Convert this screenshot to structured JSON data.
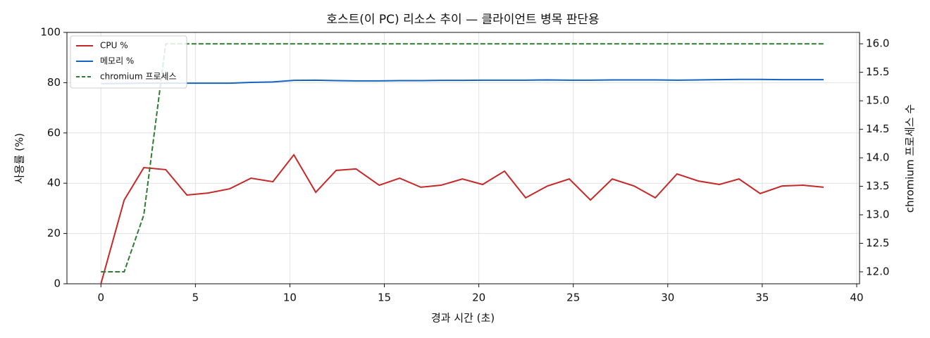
{
  "chart_data": {
    "type": "line",
    "title": "호스트(이 PC) 리소스 추이 — 클라이언트 병목 판단용",
    "xlabel": "경과 시간 (초)",
    "ylabel": "사용률 (%)",
    "y2label": "chromium 프로세스 수",
    "x": [
      0,
      1.23,
      2.27,
      3.43,
      4.55,
      5.67,
      6.82,
      7.94,
      9.1,
      10.21,
      11.37,
      12.45,
      13.5,
      14.73,
      15.81,
      16.93,
      18.0,
      19.13,
      20.2,
      21.36,
      22.48,
      23.63,
      24.79,
      25.91,
      27.06,
      28.22,
      29.34,
      30.49,
      31.61,
      32.73,
      33.77,
      34.89,
      36.05,
      37.17,
      38.25
    ],
    "series": [
      {
        "name": "CPU %",
        "color": "#c62828",
        "linestyle": "solid",
        "values": [
          0,
          33.3,
          46.2,
          45.4,
          35.3,
          36.1,
          37.8,
          42.0,
          40.6,
          51.3,
          36.4,
          45.1,
          45.7,
          39.2,
          42.0,
          38.4,
          39.2,
          41.7,
          39.5,
          44.8,
          34.2,
          38.9,
          41.7,
          33.3,
          41.7,
          38.9,
          34.2,
          43.7,
          40.9,
          39.5,
          41.7,
          35.9,
          38.9,
          39.2,
          38.4
        ]
      },
      {
        "name": "메모리 %",
        "color": "#1565c0",
        "linestyle": "solid",
        "values": [
          79.6,
          79.7,
          79.8,
          79.8,
          79.8,
          79.8,
          79.8,
          80.1,
          80.3,
          80.9,
          81.0,
          80.8,
          80.7,
          80.7,
          80.8,
          80.8,
          80.9,
          80.9,
          81.0,
          81.0,
          81.0,
          81.1,
          81.0,
          81.0,
          81.1,
          81.1,
          81.1,
          81.0,
          81.1,
          81.2,
          81.3,
          81.3,
          81.2,
          81.2,
          81.2
        ]
      },
      {
        "name": "chromium 프로세스",
        "color": "#2e7d32",
        "linestyle": "dashed",
        "axis": "y2",
        "values": [
          12,
          12,
          13,
          16,
          16,
          16,
          16,
          16,
          16,
          16,
          16,
          16,
          16,
          16,
          16,
          16,
          16,
          16,
          16,
          16,
          16,
          16,
          16,
          16,
          16,
          16,
          16,
          16,
          16,
          16,
          16,
          16,
          16,
          16,
          16
        ]
      }
    ],
    "xlim": [
      -1.8,
      40.15
    ],
    "xticks": [
      0,
      5,
      10,
      15,
      20,
      25,
      30,
      35,
      40
    ],
    "ylim": [
      0,
      100
    ],
    "yticks": [
      0,
      20,
      40,
      60,
      80,
      100
    ],
    "y2lim": [
      11.79,
      16.2
    ],
    "y2ticks": [
      {
        "value": 12,
        "label": "12.0"
      },
      {
        "value": 12.5,
        "label": "12.5"
      },
      {
        "value": 13,
        "label": "13.0"
      },
      {
        "value": 13.5,
        "label": "13.5"
      },
      {
        "value": 14,
        "label": "14.0"
      },
      {
        "value": 14.5,
        "label": "14.5"
      },
      {
        "value": 15,
        "label": "15.0"
      },
      {
        "value": 15.5,
        "label": "15.5"
      },
      {
        "value": 16,
        "label": "16.0"
      }
    ],
    "grid": true,
    "legend": "upper left"
  }
}
